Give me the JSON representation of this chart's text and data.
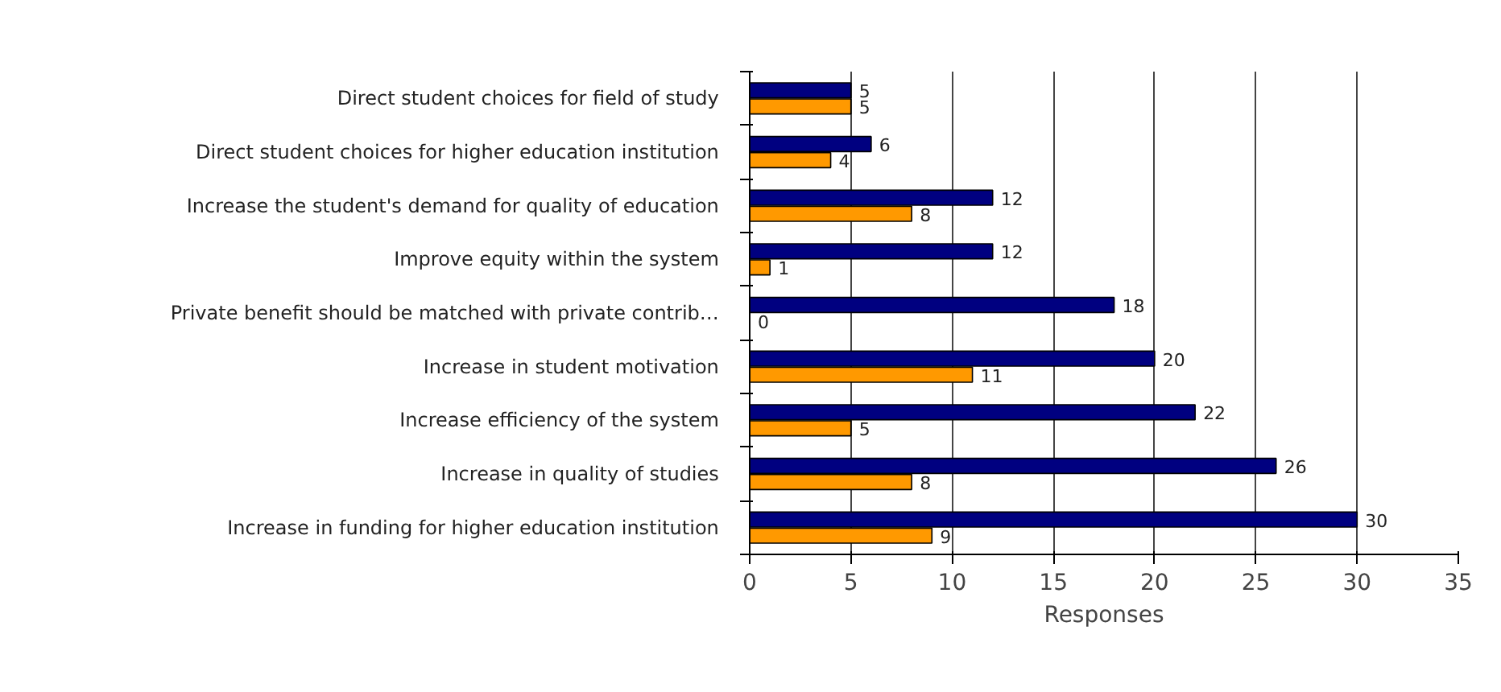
{
  "chart_data": {
    "type": "bar",
    "orientation": "horizontal",
    "xlabel": "Responses",
    "categories": [
      "Direct student choices for field of study",
      "Direct student choices for higher education institution",
      "Increase the student's demand for quality of education",
      "Improve equity within the system",
      "Private benefit should be matched with private contrib…",
      "Increase in student motivation",
      "Increase efficiency of the system",
      "Increase in quality of studies",
      "Increase in funding for higher education institution"
    ],
    "series": [
      {
        "color": "#000080",
        "values": [
          5,
          6,
          12,
          12,
          18,
          20,
          22,
          26,
          30
        ]
      },
      {
        "color": "#ff9900",
        "values": [
          5,
          4,
          8,
          1,
          0,
          11,
          5,
          8,
          9
        ]
      }
    ],
    "xlim": [
      0,
      35
    ],
    "xticks": [
      0,
      5,
      10,
      15,
      20,
      25,
      30,
      35
    ],
    "grid": "x",
    "data_labels": true
  }
}
